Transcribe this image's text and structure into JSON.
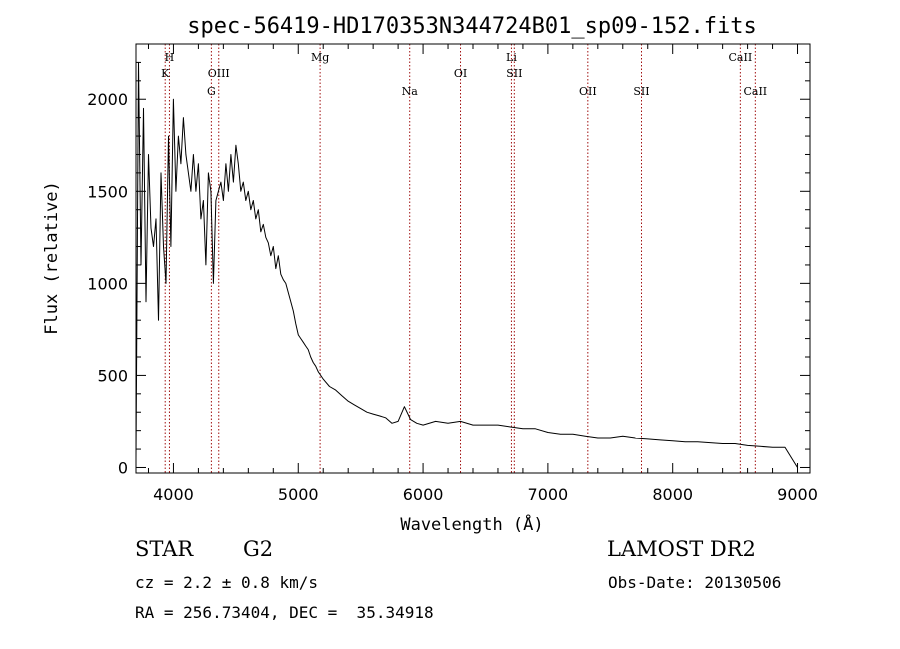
{
  "chart_data": {
    "type": "line",
    "title": "spec-56419-HD170353N344724B01_sp09-152.fits",
    "xlabel": "Wavelength (Å)",
    "ylabel": "Flux (relative)",
    "xlim": [
      3700,
      9100
    ],
    "ylim": [
      -30,
      2300
    ],
    "x_ticks": [
      4000,
      5000,
      6000,
      7000,
      8000,
      9000
    ],
    "y_ticks": [
      0,
      500,
      1000,
      1500,
      2000
    ],
    "x_tick_labels": [
      "4000",
      "5000",
      "6000",
      "7000",
      "8000",
      "9000"
    ],
    "y_tick_labels": [
      "0",
      "500",
      "1000",
      "1500",
      "2000"
    ],
    "grid": false,
    "series": [
      {
        "x": [
          3700,
          3720,
          3740,
          3760,
          3780,
          3800,
          3820,
          3840,
          3860,
          3880,
          3900,
          3920,
          3940,
          3960,
          3980,
          4000,
          4020,
          4040,
          4060,
          4080,
          4100,
          4120,
          4140,
          4160,
          4180,
          4200,
          4220,
          4240,
          4260,
          4280,
          4300,
          4320,
          4340,
          4360,
          4380,
          4400,
          4420,
          4440,
          4460,
          4480,
          4500,
          4520,
          4540,
          4560,
          4580,
          4600,
          4620,
          4640,
          4660,
          4680,
          4700,
          4720,
          4740,
          4760,
          4780,
          4800,
          4820,
          4840,
          4860,
          4880,
          4900,
          4920,
          4940,
          4960,
          4980,
          5000,
          5020,
          5040,
          5060,
          5080,
          5100,
          5120,
          5140,
          5160,
          5180,
          5200,
          5250,
          5300,
          5350,
          5400,
          5450,
          5500,
          5550,
          5600,
          5650,
          5700,
          5750,
          5800,
          5850,
          5900,
          5950,
          6000,
          6100,
          6200,
          6300,
          6400,
          6500,
          6600,
          6700,
          6800,
          6900,
          7000,
          7100,
          7200,
          7300,
          7400,
          7500,
          7600,
          7700,
          7800,
          7900,
          8000,
          8100,
          8200,
          8300,
          8400,
          8500,
          8600,
          8700,
          8800,
          8900,
          9000
        ],
        "values": [
          50,
          2200,
          1100,
          1950,
          900,
          1700,
          1300,
          1200,
          1350,
          800,
          1600,
          1200,
          1000,
          1800,
          1200,
          2000,
          1500,
          1800,
          1650,
          1900,
          1700,
          1600,
          1500,
          1700,
          1500,
          1650,
          1350,
          1450,
          1100,
          1600,
          1500,
          1000,
          1450,
          1500,
          1550,
          1450,
          1650,
          1500,
          1700,
          1550,
          1750,
          1650,
          1500,
          1550,
          1450,
          1500,
          1400,
          1450,
          1350,
          1400,
          1280,
          1320,
          1250,
          1220,
          1150,
          1200,
          1080,
          1150,
          1050,
          1020,
          1000,
          950,
          900,
          850,
          780,
          720,
          700,
          680,
          660,
          640,
          600,
          570,
          550,
          520,
          500,
          480,
          440,
          420,
          390,
          360,
          340,
          320,
          300,
          290,
          280,
          270,
          240,
          250,
          330,
          260,
          240,
          230,
          250,
          240,
          250,
          230,
          230,
          230,
          220,
          210,
          210,
          190,
          180,
          180,
          170,
          160,
          160,
          170,
          160,
          155,
          150,
          145,
          140,
          140,
          135,
          130,
          130,
          120,
          115,
          110,
          110,
          0
        ]
      }
    ],
    "lines": [
      {
        "name": "H",
        "x": 3968,
        "row": 1
      },
      {
        "name": "K",
        "x": 3934,
        "row": 2
      },
      {
        "name": "OIII",
        "x": 4363,
        "row": 2
      },
      {
        "name": "G",
        "x": 4304,
        "row": 3
      },
      {
        "name": "Mg",
        "x": 5175,
        "row": 1
      },
      {
        "name": "Na",
        "x": 5893,
        "row": 3
      },
      {
        "name": "OI",
        "x": 6300,
        "row": 2
      },
      {
        "name": "Li",
        "x": 6708,
        "row": 1
      },
      {
        "name": "SII",
        "x": 6731,
        "row": 2
      },
      {
        "name": "OII",
        "x": 7320,
        "row": 3
      },
      {
        "name": "SII",
        "x": 7750,
        "row": 3
      },
      {
        "name": "CaII",
        "x": 8542,
        "row": 1
      },
      {
        "name": "CaII",
        "x": 8662,
        "row": 3
      }
    ]
  },
  "info": {
    "class": "STAR",
    "subclass": "G2",
    "survey": "LAMOST DR2",
    "cz": "cz = 2.2 ± 0.8 km/s",
    "obs_date": "Obs-Date: 20130506",
    "radec": "RA = 256.73404, DEC =  35.34918"
  },
  "colors": {
    "line_marker": "#a01010",
    "spectrum": "#000000"
  }
}
